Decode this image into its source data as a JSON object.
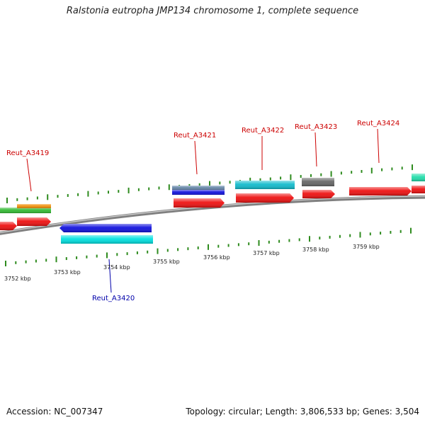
{
  "title": "Ralstonia eutropha JMP134 chromosome 1, complete sequence",
  "footer": {
    "accession": "Accession: NC_007347",
    "summary": "Topology: circular; Length: 3,806,533 bp; Genes: 3,504"
  },
  "colors": {
    "backbone": "#808080",
    "tick": "#2e8b1e",
    "label_forward": "#cc0000",
    "label_reverse": "#0000aa"
  },
  "scale_labels": [
    "3752 kbp",
    "3753 kbp",
    "3754 kbp",
    "3755 kbp",
    "3756 kbp",
    "3757 kbp",
    "3758 kbp",
    "3759 kbp"
  ],
  "gene_labels": [
    {
      "name": "Reut_A3419",
      "strand": "forward"
    },
    {
      "name": "Reut_A3420",
      "strand": "reverse"
    },
    {
      "name": "Reut_A3421",
      "strand": "forward"
    },
    {
      "name": "Reut_A3422",
      "strand": "forward"
    },
    {
      "name": "Reut_A3423",
      "strand": "forward"
    },
    {
      "name": "Reut_A3424",
      "strand": "forward"
    }
  ],
  "features": [
    {
      "type": "gene",
      "strand": "forward",
      "color": "#ee1111"
    },
    {
      "type": "gene",
      "strand": "forward",
      "color": "#ee1111"
    },
    {
      "type": "CDS",
      "strand": "forward",
      "color": "#33bb33"
    },
    {
      "type": "misc",
      "strand": "forward",
      "color": "#f0900a"
    },
    {
      "type": "gene",
      "strand": "reverse",
      "color": "#00e0e0"
    },
    {
      "type": "CDS",
      "strand": "reverse",
      "color": "#1111dd"
    },
    {
      "type": "gene",
      "strand": "forward",
      "color": "#ee1111"
    },
    {
      "type": "CDS",
      "strand": "forward",
      "color": "#1111dd"
    },
    {
      "type": "misc",
      "strand": "forward",
      "color": "#6688aa"
    },
    {
      "type": "gene",
      "strand": "forward",
      "color": "#ee1111"
    },
    {
      "type": "CDS",
      "strand": "forward",
      "color": "#11bbcc"
    },
    {
      "type": "gene",
      "strand": "forward",
      "color": "#ee1111"
    },
    {
      "type": "CDS",
      "strand": "forward",
      "color": "#666666"
    },
    {
      "type": "gene",
      "strand": "forward",
      "color": "#ee1111"
    },
    {
      "type": "gene",
      "strand": "forward",
      "color": "#ee1111"
    },
    {
      "type": "CDS",
      "strand": "forward",
      "color": "#22ddaa"
    }
  ]
}
